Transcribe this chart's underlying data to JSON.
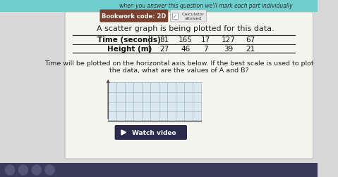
{
  "bg_color": "#d8d8d8",
  "top_banner_color": "#6ecece",
  "top_banner_text": "when you answer this question we'll mark each part individually",
  "top_banner_text_color": "#444444",
  "bookwork_label": "Bookwork code: 2D",
  "bookwork_bg": "#7B3F2E",
  "bookwork_text_color": "#ffffff",
  "calculator_text": "Calculator\nallowed",
  "main_text": "A scatter graph is being plotted for this data.",
  "table_row1_label": "Time (seconds)",
  "table_row2_label": "Height (m)",
  "table_row1_values": [
    "81",
    "165",
    "17",
    "127",
    "67"
  ],
  "table_row2_values": [
    "27",
    "46",
    "7",
    "39",
    "21"
  ],
  "instruction_line1": "Time will be plotted on the horizontal axis below. If the best scale is used to plot",
  "instruction_line2": "the data, what are the values of A and B?",
  "watch_video_text": "Watch video",
  "watch_video_bg": "#2a2a4a",
  "grid_color": "#a0b8c8",
  "grid_bg": "#dce8f0",
  "axis_color": "#444444",
  "white_card_bg": "#f5f5f0",
  "bottom_bar_color": "#3a3a5a",
  "bottom_bar_icons_color": "#cccccc"
}
